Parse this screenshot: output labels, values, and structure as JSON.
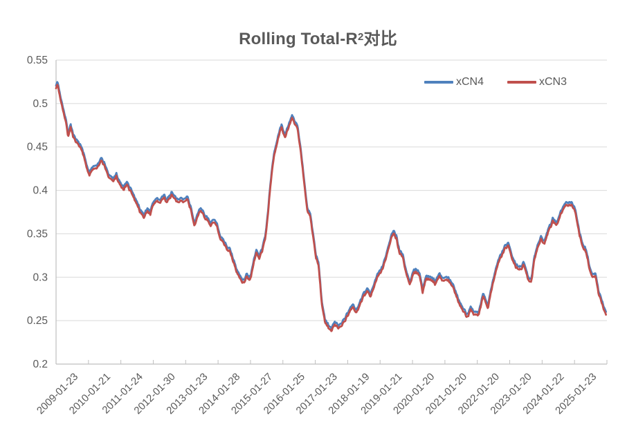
{
  "chart_data": {
    "type": "line",
    "title": "Rolling Total-R²对比",
    "title_plain": "Rolling Total-R",
    "title_sup": "2",
    "title_suffix": "对比",
    "xlabel": "",
    "ylabel": "",
    "ylim": [
      0.2,
      0.55
    ],
    "y_tick_labels": [
      "0.55",
      "0.5",
      "0.45",
      "0.4",
      "0.35",
      "0.3",
      "0.25",
      "0.2"
    ],
    "y_tick_values": [
      0.55,
      0.5,
      0.45,
      0.4,
      0.35,
      0.3,
      0.25,
      0.2
    ],
    "x_tick_labels": [
      "2009-01-23",
      "2010-01-21",
      "2011-01-24",
      "2012-01-30",
      "2013-01-23",
      "2014-01-28",
      "2015-01-27",
      "2016-01-25",
      "2017-01-23",
      "2018-01-19",
      "2019-01-21",
      "2020-01-20",
      "2021-01-20",
      "2022-01-20",
      "2023-01-20",
      "2024-01-22",
      "2025-01-23"
    ],
    "x_range_years": [
      2009.05,
      2025.96
    ],
    "grid": "horizontal",
    "legend_position": "top-right-inside",
    "series": [
      {
        "name": "xCN4",
        "color": "#4F81BD",
        "keypoints": [
          [
            2009.05,
            0.522
          ],
          [
            2009.1,
            0.525
          ],
          [
            2009.18,
            0.51
          ],
          [
            2009.28,
            0.494
          ],
          [
            2009.36,
            0.479
          ],
          [
            2009.42,
            0.4655
          ],
          [
            2009.5,
            0.4755
          ],
          [
            2009.58,
            0.4645
          ],
          [
            2009.68,
            0.456
          ],
          [
            2009.8,
            0.4505
          ],
          [
            2009.88,
            0.4445
          ],
          [
            2010.0,
            0.426
          ],
          [
            2010.08,
            0.4195
          ],
          [
            2010.2,
            0.4265
          ],
          [
            2010.33,
            0.43
          ],
          [
            2010.45,
            0.4365
          ],
          [
            2010.55,
            0.4295
          ],
          [
            2010.68,
            0.4155
          ],
          [
            2010.8,
            0.4125
          ],
          [
            2010.9,
            0.4175
          ],
          [
            2011.0,
            0.4085
          ],
          [
            2011.12,
            0.4025
          ],
          [
            2011.22,
            0.4075
          ],
          [
            2011.35,
            0.401
          ],
          [
            2011.5,
            0.39
          ],
          [
            2011.62,
            0.3785
          ],
          [
            2011.75,
            0.3725
          ],
          [
            2011.85,
            0.3805
          ],
          [
            2011.95,
            0.3765
          ],
          [
            2012.05,
            0.3875
          ],
          [
            2012.15,
            0.3915
          ],
          [
            2012.25,
            0.3875
          ],
          [
            2012.35,
            0.3945
          ],
          [
            2012.45,
            0.39
          ],
          [
            2012.6,
            0.3975
          ],
          [
            2012.7,
            0.391
          ],
          [
            2012.8,
            0.3875
          ],
          [
            2012.9,
            0.3925
          ],
          [
            2013.0,
            0.3885
          ],
          [
            2013.1,
            0.392
          ],
          [
            2013.2,
            0.378
          ],
          [
            2013.3,
            0.3635
          ],
          [
            2013.42,
            0.3725
          ],
          [
            2013.5,
            0.379
          ],
          [
            2013.6,
            0.3725
          ],
          [
            2013.7,
            0.3665
          ],
          [
            2013.8,
            0.3605
          ],
          [
            2013.9,
            0.3655
          ],
          [
            2014.0,
            0.3595
          ],
          [
            2014.08,
            0.3475
          ],
          [
            2014.18,
            0.3435
          ],
          [
            2014.28,
            0.3355
          ],
          [
            2014.4,
            0.3315
          ],
          [
            2014.5,
            0.3195
          ],
          [
            2014.6,
            0.3085
          ],
          [
            2014.72,
            0.2995
          ],
          [
            2014.82,
            0.2945
          ],
          [
            2014.9,
            0.3035
          ],
          [
            2015.0,
            0.2965
          ],
          [
            2015.1,
            0.3145
          ],
          [
            2015.2,
            0.3295
          ],
          [
            2015.3,
            0.3255
          ],
          [
            2015.4,
            0.3345
          ],
          [
            2015.48,
            0.3485
          ],
          [
            2015.56,
            0.372
          ],
          [
            2015.64,
            0.4095
          ],
          [
            2015.74,
            0.4425
          ],
          [
            2015.84,
            0.4585
          ],
          [
            2015.92,
            0.4685
          ],
          [
            2015.98,
            0.4755
          ],
          [
            2016.08,
            0.4625
          ],
          [
            2016.16,
            0.4715
          ],
          [
            2016.24,
            0.4785
          ],
          [
            2016.3,
            0.4865
          ],
          [
            2016.38,
            0.4795
          ],
          [
            2016.46,
            0.4745
          ],
          [
            2016.54,
            0.4565
          ],
          [
            2016.62,
            0.4305
          ],
          [
            2016.7,
            0.4005
          ],
          [
            2016.78,
            0.3765
          ],
          [
            2016.86,
            0.3725
          ],
          [
            2016.96,
            0.3455
          ],
          [
            2017.04,
            0.3235
          ],
          [
            2017.12,
            0.3155
          ],
          [
            2017.22,
            0.2715
          ],
          [
            2017.32,
            0.2505
          ],
          [
            2017.42,
            0.2435
          ],
          [
            2017.52,
            0.2415
          ],
          [
            2017.62,
            0.2475
          ],
          [
            2017.72,
            0.2445
          ],
          [
            2017.82,
            0.2465
          ],
          [
            2017.95,
            0.2525
          ],
          [
            2018.08,
            0.2625
          ],
          [
            2018.18,
            0.2675
          ],
          [
            2018.28,
            0.2605
          ],
          [
            2018.4,
            0.2725
          ],
          [
            2018.52,
            0.2815
          ],
          [
            2018.62,
            0.2865
          ],
          [
            2018.72,
            0.2805
          ],
          [
            2018.82,
            0.2915
          ],
          [
            2018.92,
            0.3025
          ],
          [
            2019.02,
            0.3065
          ],
          [
            2019.12,
            0.3155
          ],
          [
            2019.22,
            0.3305
          ],
          [
            2019.32,
            0.3445
          ],
          [
            2019.42,
            0.3535
          ],
          [
            2019.52,
            0.3475
          ],
          [
            2019.6,
            0.3325
          ],
          [
            2019.7,
            0.3285
          ],
          [
            2019.8,
            0.3105
          ],
          [
            2019.92,
            0.2955
          ],
          [
            2020.02,
            0.3085
          ],
          [
            2020.12,
            0.3105
          ],
          [
            2020.22,
            0.3075
          ],
          [
            2020.32,
            0.2865
          ],
          [
            2020.42,
            0.3025
          ],
          [
            2020.55,
            0.3005
          ],
          [
            2020.7,
            0.2965
          ],
          [
            2020.82,
            0.3045
          ],
          [
            2020.95,
            0.2995
          ],
          [
            2021.1,
            0.3005
          ],
          [
            2021.25,
            0.2925
          ],
          [
            2021.4,
            0.2775
          ],
          [
            2021.55,
            0.2665
          ],
          [
            2021.68,
            0.2585
          ],
          [
            2021.8,
            0.2665
          ],
          [
            2021.92,
            0.2605
          ],
          [
            2022.05,
            0.2625
          ],
          [
            2022.18,
            0.2825
          ],
          [
            2022.32,
            0.2675
          ],
          [
            2022.45,
            0.2915
          ],
          [
            2022.58,
            0.3125
          ],
          [
            2022.72,
            0.3275
          ],
          [
            2022.85,
            0.3365
          ],
          [
            2022.95,
            0.3405
          ],
          [
            2023.08,
            0.3235
          ],
          [
            2023.2,
            0.3155
          ],
          [
            2023.32,
            0.3125
          ],
          [
            2023.42,
            0.3195
          ],
          [
            2023.55,
            0.3035
          ],
          [
            2023.65,
            0.2985
          ],
          [
            2023.75,
            0.3245
          ],
          [
            2023.85,
            0.3395
          ],
          [
            2023.95,
            0.3485
          ],
          [
            2024.05,
            0.3425
          ],
          [
            2024.18,
            0.3555
          ],
          [
            2024.32,
            0.3675
          ],
          [
            2024.42,
            0.3615
          ],
          [
            2024.56,
            0.3755
          ],
          [
            2024.7,
            0.3855
          ],
          [
            2024.88,
            0.3885
          ],
          [
            2024.98,
            0.3825
          ],
          [
            2025.06,
            0.3705
          ],
          [
            2025.14,
            0.3525
          ],
          [
            2025.24,
            0.3385
          ],
          [
            2025.34,
            0.3325
          ],
          [
            2025.44,
            0.3145
          ],
          [
            2025.54,
            0.3045
          ],
          [
            2025.62,
            0.3065
          ],
          [
            2025.72,
            0.2865
          ],
          [
            2025.82,
            0.2755
          ],
          [
            2025.9,
            0.2665
          ],
          [
            2025.96,
            0.2625
          ]
        ]
      },
      {
        "name": "xCN3",
        "color": "#C0504D",
        "derived_from": "xCN4",
        "offset": -0.0032
      }
    ],
    "noise_amplitude": 0.0019,
    "noise_seed": 7
  },
  "style": {
    "background": "#FFFFFF",
    "text_color": "#595959",
    "grid_color": "#D9D9D9",
    "axis_color": "#BFBFBF"
  },
  "legend": {
    "items": [
      {
        "label": "xCN4",
        "color": "#4F81BD"
      },
      {
        "label": "xCN3",
        "color": "#C0504D"
      }
    ]
  }
}
